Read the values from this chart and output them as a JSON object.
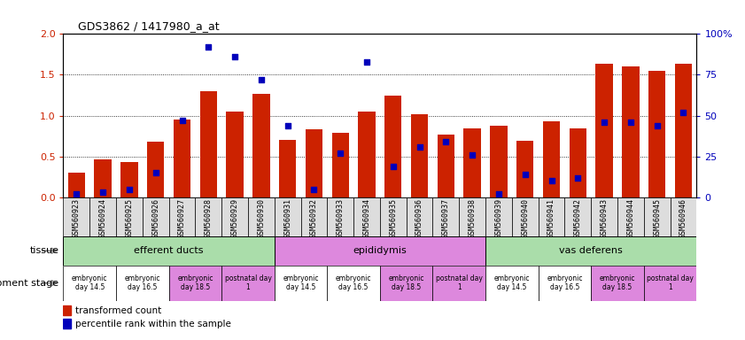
{
  "title": "GDS3862 / 1417980_a_at",
  "samples": [
    "GSM560923",
    "GSM560924",
    "GSM560925",
    "GSM560926",
    "GSM560927",
    "GSM560928",
    "GSM560929",
    "GSM560930",
    "GSM560931",
    "GSM560932",
    "GSM560933",
    "GSM560934",
    "GSM560935",
    "GSM560936",
    "GSM560937",
    "GSM560938",
    "GSM560939",
    "GSM560940",
    "GSM560941",
    "GSM560942",
    "GSM560943",
    "GSM560944",
    "GSM560945",
    "GSM560946"
  ],
  "bar_values": [
    0.3,
    0.46,
    0.43,
    0.68,
    0.95,
    1.3,
    1.05,
    1.27,
    0.7,
    0.83,
    0.79,
    1.05,
    1.25,
    1.02,
    0.77,
    0.84,
    0.88,
    0.69,
    0.93,
    0.84,
    1.63,
    1.6,
    1.55,
    1.64
  ],
  "dot_pct": [
    2,
    3,
    5,
    15,
    47,
    92,
    86,
    72,
    44,
    5,
    27,
    83,
    19,
    31,
    34,
    26,
    2,
    14,
    10,
    12,
    46,
    46,
    44,
    52
  ],
  "bar_color": "#cc2200",
  "dot_color": "#0000bb",
  "ylim_left": [
    0,
    2.0
  ],
  "ylim_right": [
    0,
    100
  ],
  "yticks_left": [
    0,
    0.5,
    1.0,
    1.5,
    2.0
  ],
  "yticks_right": [
    0,
    25,
    50,
    75,
    100
  ],
  "tissues": [
    {
      "label": "efferent ducts",
      "start": 0,
      "end": 7,
      "color": "#aaddaa"
    },
    {
      "label": "epididymis",
      "start": 8,
      "end": 15,
      "color": "#dd88dd"
    },
    {
      "label": "vas deferens",
      "start": 16,
      "end": 23,
      "color": "#aaddaa"
    }
  ],
  "dev_stages": [
    {
      "label": "embryonic\nday 14.5",
      "start": 0,
      "end": 1,
      "color": "#ffffff"
    },
    {
      "label": "embryonic\nday 16.5",
      "start": 2,
      "end": 3,
      "color": "#ffffff"
    },
    {
      "label": "embryonic\nday 18.5",
      "start": 4,
      "end": 5,
      "color": "#dd88dd"
    },
    {
      "label": "postnatal day\n1",
      "start": 6,
      "end": 7,
      "color": "#dd88dd"
    },
    {
      "label": "embryonic\nday 14.5",
      "start": 8,
      "end": 9,
      "color": "#ffffff"
    },
    {
      "label": "embryonic\nday 16.5",
      "start": 10,
      "end": 11,
      "color": "#ffffff"
    },
    {
      "label": "embryonic\nday 18.5",
      "start": 12,
      "end": 13,
      "color": "#dd88dd"
    },
    {
      "label": "postnatal day\n1",
      "start": 14,
      "end": 15,
      "color": "#dd88dd"
    },
    {
      "label": "embryonic\nday 14.5",
      "start": 16,
      "end": 17,
      "color": "#ffffff"
    },
    {
      "label": "embryonic\nday 16.5",
      "start": 18,
      "end": 19,
      "color": "#ffffff"
    },
    {
      "label": "embryonic\nday 18.5",
      "start": 20,
      "end": 21,
      "color": "#dd88dd"
    },
    {
      "label": "postnatal day\n1",
      "start": 22,
      "end": 23,
      "color": "#dd88dd"
    }
  ],
  "tissue_label": "tissue",
  "dev_stage_label": "development stage",
  "legend_bar": "transformed count",
  "legend_dot": "percentile rank within the sample",
  "bg_color": "#ffffff",
  "tick_label_color_left": "#cc2200",
  "tick_label_color_right": "#0000bb",
  "xticklabel_bg": "#dddddd"
}
